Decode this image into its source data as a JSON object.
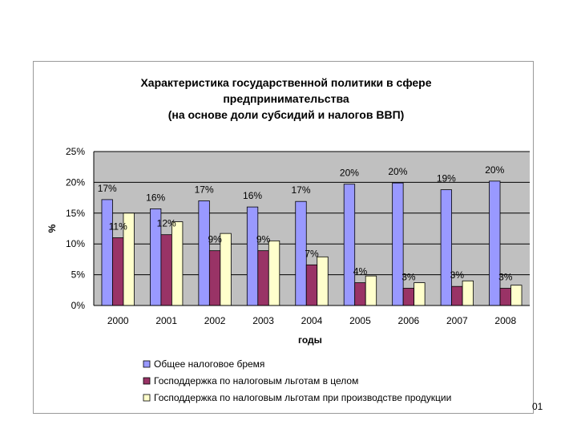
{
  "chart_data": {
    "type": "bar",
    "title_lines": [
      "Характеристика государственной политики в сфере",
      "предпринимательства",
      "(на основе доли субсидий и налогов ВВП)"
    ],
    "xlabel": "годы",
    "ylabel": "%",
    "categories": [
      "2000",
      "2001",
      "2002",
      "2003",
      "2004",
      "2005",
      "2006",
      "2007",
      "2008"
    ],
    "y_ticks": [
      "0%",
      "5%",
      "10%",
      "15%",
      "20%",
      "25%"
    ],
    "ylim": [
      0,
      25
    ],
    "grid": true,
    "legend_position": "bottom",
    "series": [
      {
        "name": "Общее налоговое бремя",
        "color": "#9999ff",
        "values": [
          17.2,
          15.7,
          17.0,
          16.0,
          16.9,
          19.7,
          19.9,
          18.8,
          20.2
        ],
        "labels": [
          "17%",
          "16%",
          "17%",
          "16%",
          "17%",
          "20%",
          "20%",
          "19%",
          "20%"
        ]
      },
      {
        "name": "Господдержка по налоговым льготам в целом",
        "color": "#993366",
        "values": [
          11.0,
          11.5,
          8.9,
          8.9,
          6.6,
          3.7,
          2.8,
          3.1,
          2.8
        ],
        "labels": [
          "11%",
          "12%",
          "9%",
          "9%",
          "7%",
          "4%",
          "3%",
          "3%",
          "3%"
        ]
      },
      {
        "name": "Господдержка по налоговым льготам при производстве продукции",
        "color": "#ffffcc",
        "values": [
          15.0,
          13.6,
          11.7,
          10.5,
          7.9,
          4.8,
          3.7,
          4.0,
          3.3
        ],
        "labels": []
      }
    ]
  },
  "page_number": "01"
}
